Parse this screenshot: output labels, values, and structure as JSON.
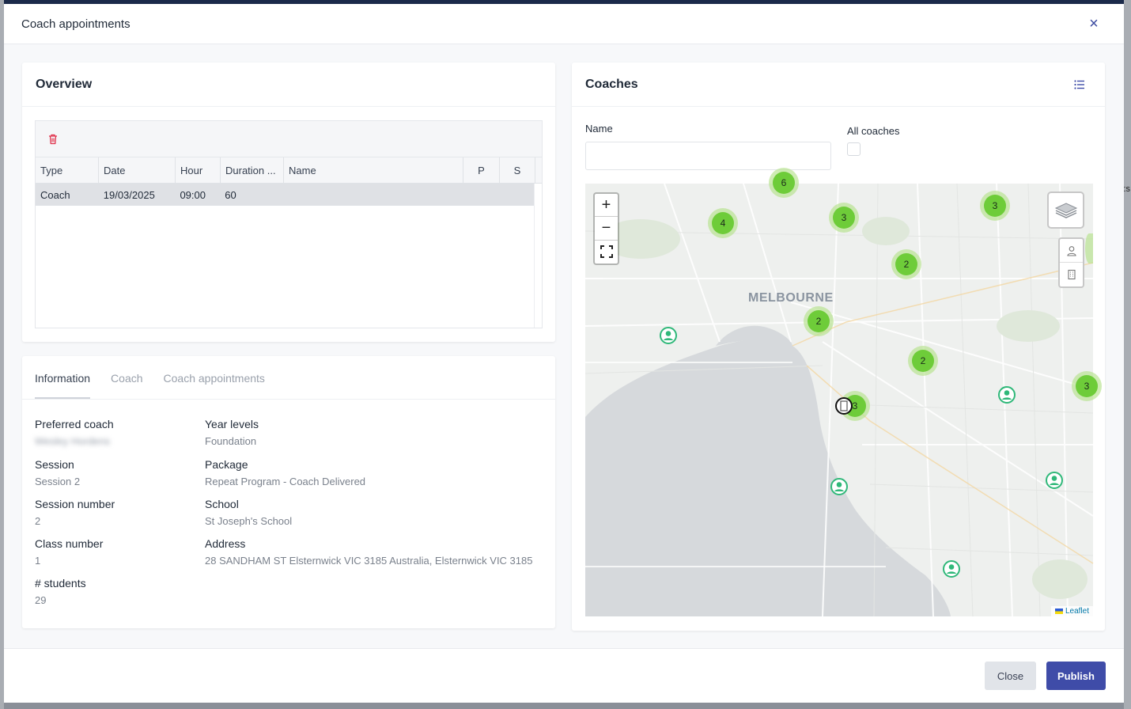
{
  "modal": {
    "title": "Coach appointments",
    "close_label": "×"
  },
  "overview": {
    "title": "Overview",
    "columns": [
      "Type",
      "Date",
      "Hour",
      "Duration ...",
      "Name",
      "P",
      "S"
    ],
    "rows": [
      {
        "type": "Coach",
        "date": "19/03/2025",
        "hour": "09:00",
        "duration": "60",
        "name": "",
        "p": "",
        "s": ""
      }
    ]
  },
  "info": {
    "tabs": [
      "Information",
      "Coach",
      "Coach appointments"
    ],
    "fields": {
      "preferred_coach": {
        "label": "Preferred coach",
        "value": "Wesley Hordens"
      },
      "session": {
        "label": "Session",
        "value": "Session 2"
      },
      "session_number": {
        "label": "Session number",
        "value": "2"
      },
      "class_number": {
        "label": "Class number",
        "value": "1"
      },
      "students": {
        "label": "# students",
        "value": "29"
      },
      "year_levels": {
        "label": "Year levels",
        "value": "Foundation"
      },
      "package": {
        "label": "Package",
        "value": "Repeat Program - Coach Delivered"
      },
      "school": {
        "label": "School",
        "value": "St Joseph's School"
      },
      "address": {
        "label": "Address",
        "value": "28 SANDHAM ST Elsternwick VIC 3185 Australia, Elsternwick VIC 3185"
      }
    }
  },
  "coaches": {
    "title": "Coaches",
    "name_label": "Name",
    "name_value": "",
    "all_coaches_label": "All coaches",
    "all_coaches_checked": false,
    "map": {
      "city_label": "MELBOURNE",
      "zoom_in": "+",
      "zoom_out": "−",
      "attribution": "Leaflet",
      "clusters": [
        "6",
        "3",
        "3",
        "4",
        "2",
        "2",
        "2",
        "3",
        "3"
      ]
    }
  },
  "footer": {
    "close_label": "Close",
    "publish_label": "Publish"
  },
  "colors": {
    "primary": "#3f4ca8",
    "danger": "#e0314b",
    "cluster": "#6ecc39",
    "coach_marker": "#2fb879"
  }
}
